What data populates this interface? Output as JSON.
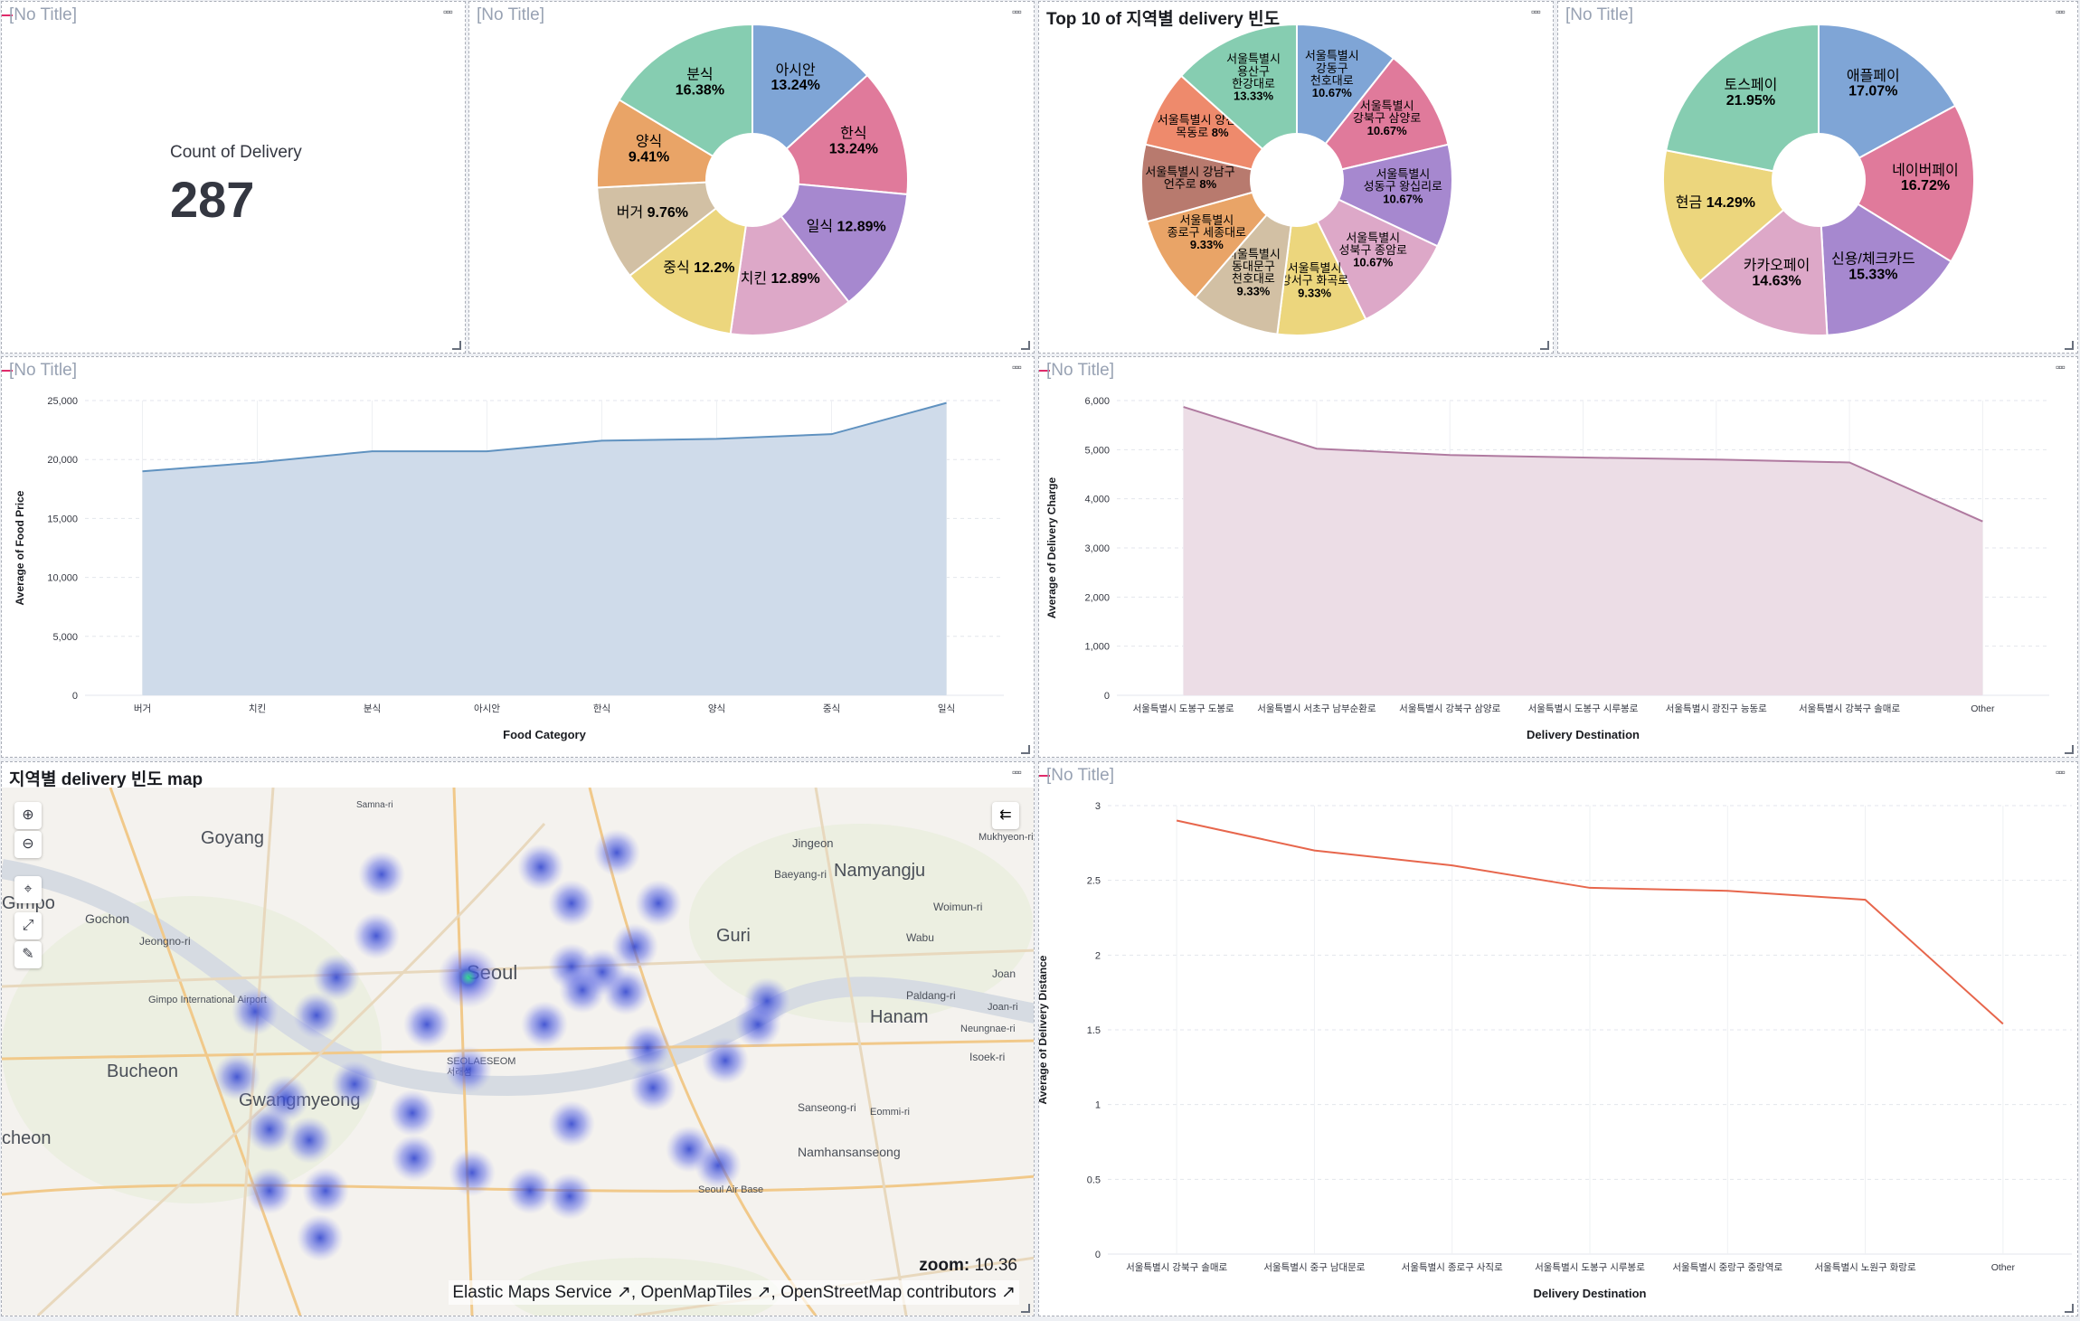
{
  "panels": {
    "metric": {
      "title": "[No Title]",
      "label": "Count of Delivery",
      "value": "287"
    },
    "pie_food": {
      "title": "[No Title]",
      "chart_data": {
        "type": "pie",
        "donut": true,
        "labels": [
          "아시안",
          "한식",
          "일식",
          "치킨",
          "중식",
          "버거",
          "양식",
          "분식"
        ],
        "values": [
          13.24,
          13.24,
          12.89,
          12.89,
          12.2,
          9.76,
          9.41,
          16.38
        ],
        "display": [
          "아시안|13.24%",
          "한식|13.24%",
          "일식 12.89%",
          "치킨 12.89%",
          "중식 12.2%",
          "버거 9.76%",
          "양식|9.41%",
          "분식|16.38%"
        ],
        "colors": [
          "#7fa5d6",
          "#e07a9b",
          "#a688cf",
          "#dda8c8",
          "#ecd67d",
          "#d2c0a4",
          "#e9a467",
          "#86cdb1"
        ]
      }
    },
    "pie_region": {
      "title": "Top 10 of 지역별 delivery 빈도",
      "chart_data": {
        "type": "pie",
        "donut": true,
        "labels": [
          "서울특별시 강동구 천호대로",
          "서울특별시 강북구 삼양로",
          "서울특별시 성동구 왕십리로",
          "서울특별시 성북구 종암로",
          "서울특별시 강서구 화곡로",
          "서울특별시 동대문구 천호대로",
          "서울특별시 종로구 세종대로",
          "서울특별시 강남구 언주로",
          "서울특별시 양천구 목동로",
          "서울특별시 용산구 한강대로"
        ],
        "values": [
          10.67,
          10.67,
          10.67,
          10.67,
          9.33,
          9.33,
          9.33,
          8,
          8,
          13.33
        ],
        "display": [
          "서울특별시|강동구|천호대로|10.67%",
          "서울특별시|강북구 삼양로|10.67%",
          "서울특별시|성동구 왕십리로|10.67%",
          "서울특별시|성북구 종암로|10.67%",
          "서울특별시|강서구 화곡로|9.33%",
          "서울특별시|동대문구|천호대로|9.33%",
          "서울특별시|종로구 세종대로|9.33%",
          "서울특별시 강남구|언주로 8%",
          "서울특별시 양천구|목동로 8%",
          "서울특별시|용산구|한강대로|13.33%"
        ],
        "colors": [
          "#7fa5d6",
          "#e07a9b",
          "#a688cf",
          "#dda8c8",
          "#ecd67d",
          "#d2c0a4",
          "#e9a467",
          "#b87a6e",
          "#ee8a6c",
          "#86cdb1"
        ]
      }
    },
    "pie_pay": {
      "title": "[No Title]",
      "chart_data": {
        "type": "pie",
        "donut": true,
        "labels": [
          "애플페이",
          "네이버페이",
          "신용/체크카드",
          "카카오페이",
          "현금",
          "토스페이"
        ],
        "values": [
          17.07,
          16.72,
          15.33,
          14.63,
          14.29,
          21.95
        ],
        "display": [
          "애플페이|17.07%",
          "네이버페이|16.72%",
          "신용/체크카드|15.33%",
          "카카오페이|14.63%",
          "현금 14.29%",
          "토스페이|21.95%"
        ],
        "colors": [
          "#7fa5d6",
          "#e07a9b",
          "#a688cf",
          "#dda8c8",
          "#ecd67d",
          "#86cdb1"
        ]
      }
    },
    "area_price": {
      "title": "[No Title]",
      "chart_data": {
        "type": "area",
        "categories": [
          "버거",
          "치킨",
          "분식",
          "아시안",
          "한식",
          "양식",
          "중식",
          "일식"
        ],
        "values": [
          19000,
          19750,
          20700,
          20700,
          21600,
          21750,
          22150,
          24800
        ],
        "ylim": [
          0,
          25000
        ],
        "yticks": [
          "0",
          "5,000",
          "10,000",
          "15,000",
          "20,000",
          "25,000"
        ],
        "xlabel": "Food Category",
        "ylabel": "Average of Food Price",
        "color": "#6092c0",
        "fill": "#cfdbea"
      }
    },
    "area_charge": {
      "title": "[No Title]",
      "chart_data": {
        "type": "area",
        "categories": [
          "서울특별시 도봉구 도봉로",
          "서울특별시 서초구 남부순환로",
          "서울특별시 강북구 삼양로",
          "서울특별시 도봉구 시루봉로",
          "서울특별시 광진구 능동로",
          "서울특별시 강북구 솔매로",
          "Other"
        ],
        "values": [
          5870,
          5020,
          4890,
          4840,
          4800,
          4740,
          3540
        ],
        "ylim": [
          0,
          6000
        ],
        "yticks": [
          "0",
          "1,000",
          "2,000",
          "3,000",
          "4,000",
          "5,000",
          "6,000"
        ],
        "xlabel": "Delivery Destination",
        "ylabel": "Average of Delivery Charge",
        "color": "#b07aa0",
        "fill": "#ecdde6"
      }
    },
    "map": {
      "title": "지역별 delivery 빈도 map",
      "zoom_label": "zoom:",
      "zoom_value": "10.36",
      "attribution": [
        "Elastic Maps Service",
        "OpenMapTiles",
        "OpenStreetMap contributors"
      ],
      "places": [
        "Goyang",
        "Namyangju",
        "Guri",
        "Seoul",
        "Hanam",
        "Bucheon",
        "Gwangmyeong",
        "Gochon",
        "Jeongno-ri",
        "Wabu",
        "Jingeon",
        "Baeyang-ri",
        "Gimpo International Airport",
        "Paldang-ri",
        "Joan",
        "Woimun-ri",
        "SEOLAESEOM",
        "Sanseong-ri",
        "Namhansanseong",
        "Isoek-ri",
        "Neungnae-ri",
        "Seoul Air Base",
        "Mukhyeon-ri",
        "Samna-ri",
        "Gimpo",
        "cheon",
        "서래섬",
        "Eommi-ri",
        "Joan-ri"
      ]
    },
    "line_distance": {
      "title": "[No Title]",
      "chart_data": {
        "type": "line",
        "categories": [
          "서울특별시 강북구 솔매로",
          "서울특별시 중구 남대문로",
          "서울특별시 종로구 사직로",
          "서울특별시 도봉구 시루봉로",
          "서울특별시 중랑구 중랑역로",
          "서울특별시 노원구 화랑로",
          "Other"
        ],
        "values": [
          2.9,
          2.7,
          2.6,
          2.45,
          2.43,
          2.37,
          1.54
        ],
        "ylim": [
          0,
          3
        ],
        "yticks": [
          "0",
          "0.5",
          "1",
          "1.5",
          "2",
          "2.5",
          "3"
        ],
        "xlabel": "Delivery Destination",
        "ylabel": "Average of Delivery Distance",
        "color": "#e7664c"
      }
    }
  }
}
